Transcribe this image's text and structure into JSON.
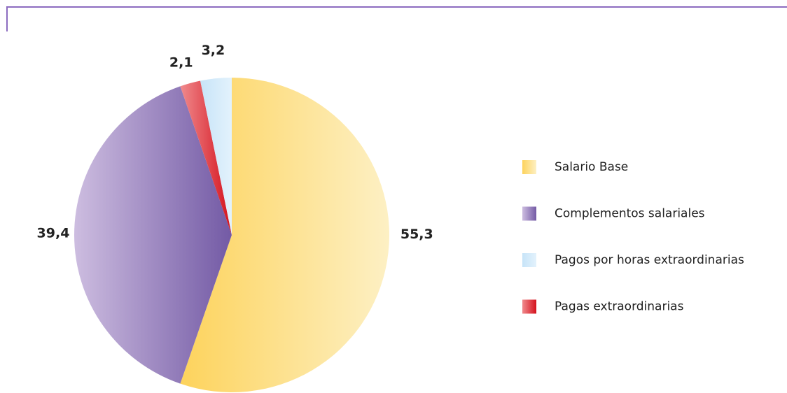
{
  "chart_data": {
    "type": "pie",
    "categories": [
      "Salario Base",
      "Complementos salariales",
      "Pagas extraordinarias",
      "Pagos por horas extraordinarias"
    ],
    "values": [
      55.3,
      39.4,
      2.1,
      3.2
    ],
    "value_labels": [
      "55,3",
      "39,4",
      "2,1",
      "3,2"
    ],
    "colors": [
      "#fdd35c",
      "#735aa5",
      "#d4111c",
      "#c7e4f8"
    ],
    "legend_order": [
      0,
      1,
      3,
      2
    ],
    "legend": "right"
  }
}
